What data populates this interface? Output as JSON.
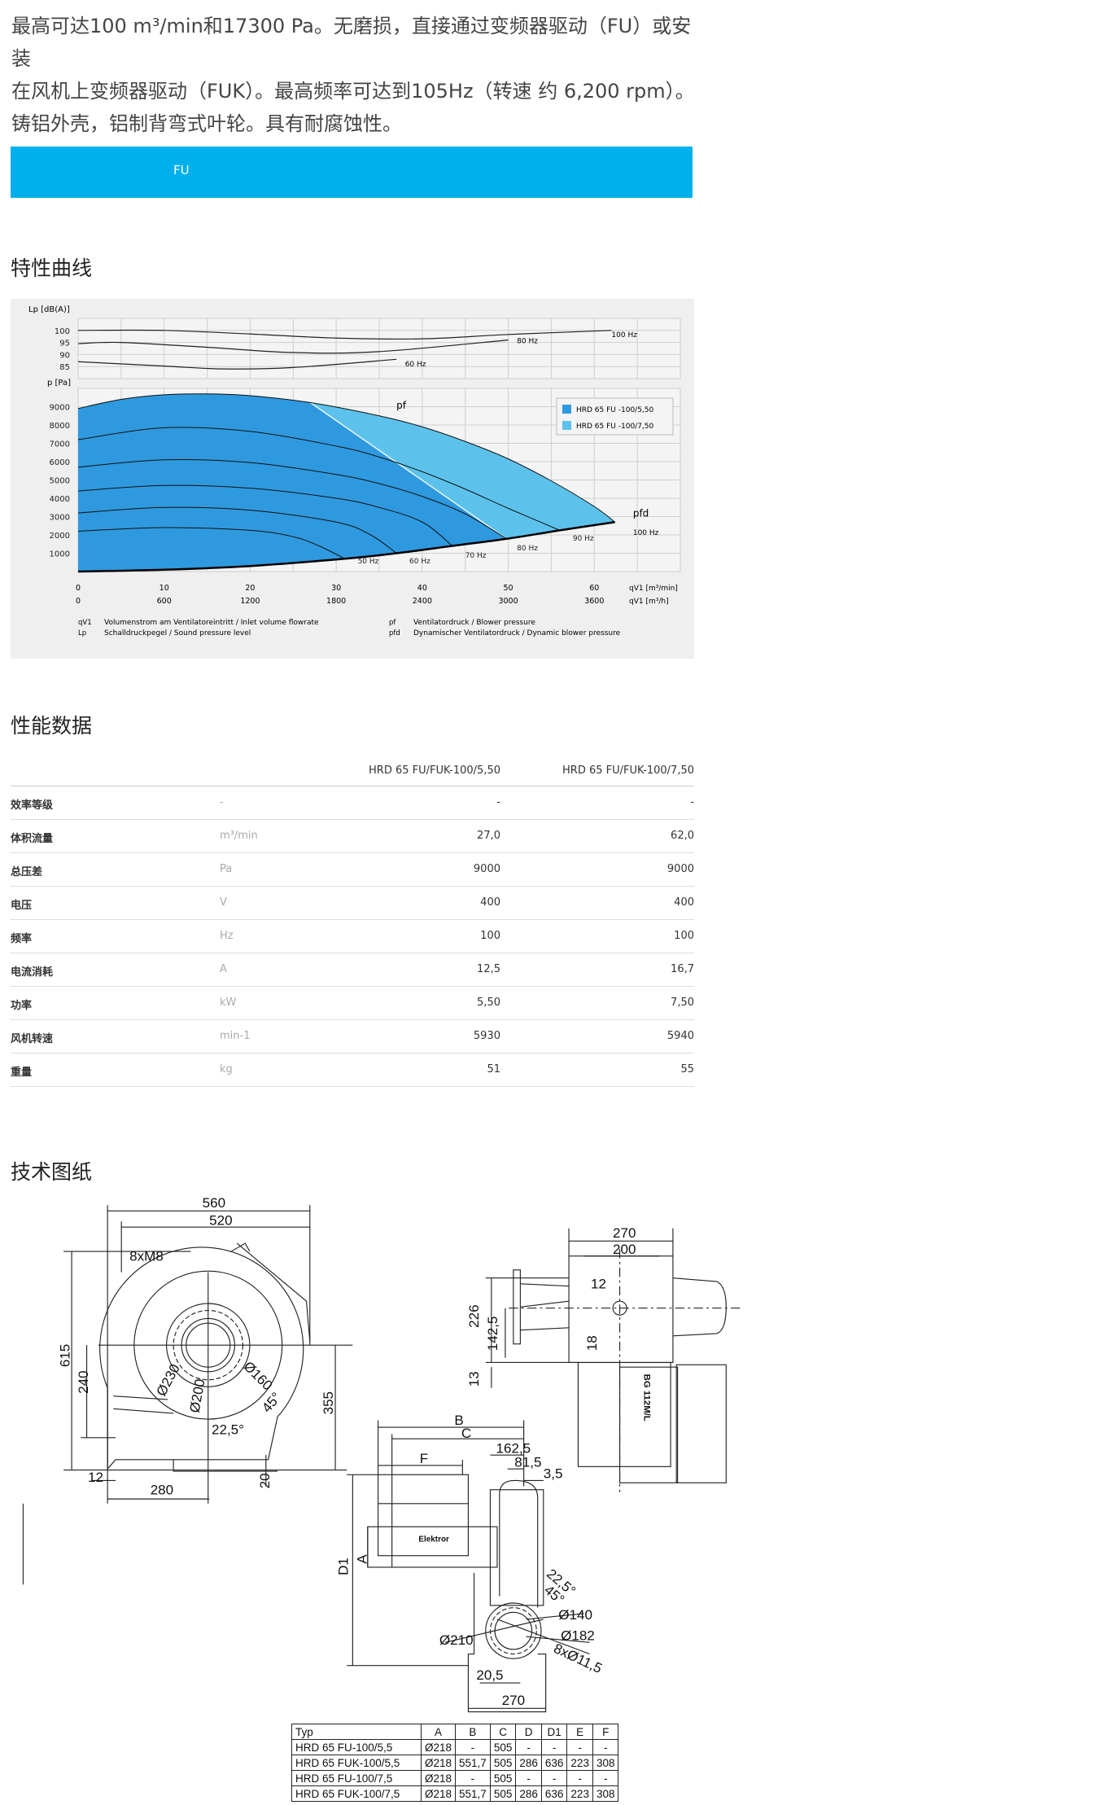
{
  "intro": {
    "line1": "最高可达100 m³/min和17300 Pa。无磨损，直接通过变频器驱动（FU）或安装",
    "line2": "在风机上变频器驱动（FUK）。最高频率可达到105Hz（转速 约 6,200 rpm）。",
    "line3": "铸铝外壳，铝制背弯式叶轮。具有耐腐蚀性。"
  },
  "tabs": [
    {
      "label": "FU",
      "active": true
    }
  ],
  "colors": {
    "accent": "#00b0ec",
    "series_dark": "#2e99df",
    "series_light": "#5cc2ec",
    "chart_bg": "#efefef"
  },
  "sections": {
    "curves": "特性曲线",
    "performance": "性能数据",
    "drawing": "技术图纸"
  },
  "chart_data": {
    "type": "area",
    "sound_panel": {
      "ylabel": "Lp [dB(A)]",
      "yticks": [
        100,
        95,
        90,
        85
      ],
      "ylim": [
        80,
        105
      ],
      "xlim": [
        0,
        70
      ],
      "series": [
        {
          "name": "100 Hz",
          "points": [
            [
              0,
              100
            ],
            [
              10,
              100
            ],
            [
              20,
              98.5
            ],
            [
              30,
              96.8
            ],
            [
              40,
              96.5
            ],
            [
              50,
              98.3
            ],
            [
              62,
              100
            ]
          ],
          "label_at": [
            62,
            98.5
          ]
        },
        {
          "name": "80 Hz",
          "points": [
            [
              0,
              94.5
            ],
            [
              5,
              95
            ],
            [
              15,
              93
            ],
            [
              25,
              90.8
            ],
            [
              35,
              91.2
            ],
            [
              50,
              96
            ]
          ],
          "label_at": [
            51,
            96
          ]
        },
        {
          "name": "60 Hz",
          "points": [
            [
              0,
              87
            ],
            [
              10,
              85.2
            ],
            [
              17,
              84
            ],
            [
              25,
              84.6
            ],
            [
              37,
              88
            ]
          ],
          "label_at": [
            38,
            86.5
          ]
        }
      ]
    },
    "pressure_panel": {
      "ylabel": "p [Pa]",
      "yticks": [
        9000,
        8000,
        7000,
        6000,
        5000,
        4000,
        3000,
        2000,
        1000
      ],
      "ylim": [
        0,
        10000
      ],
      "xlim": [
        0,
        70
      ],
      "grid": true,
      "xticks_min": [
        0,
        10,
        20,
        30,
        40,
        50,
        60
      ],
      "xticks_h": [
        0,
        600,
        1200,
        1800,
        2400,
        3000,
        3600
      ],
      "xlabel_min": "qV1 [m³/min]",
      "xlabel_h": "qV1 [m³/h]",
      "envelope_100hz": [
        [
          0,
          8900
        ],
        [
          5,
          9400
        ],
        [
          10,
          9650
        ],
        [
          15,
          9700
        ],
        [
          20,
          9600
        ],
        [
          27,
          9220
        ],
        [
          35,
          8500
        ],
        [
          40,
          7900
        ],
        [
          45,
          7100
        ],
        [
          50,
          6150
        ],
        [
          55,
          4950
        ],
        [
          60,
          3550
        ],
        [
          62.4,
          2700
        ]
      ],
      "pfd": [
        [
          0,
          0
        ],
        [
          10,
          100
        ],
        [
          20,
          300
        ],
        [
          31,
          700
        ],
        [
          37,
          1000
        ],
        [
          43.5,
          1400
        ],
        [
          50,
          1800
        ],
        [
          56,
          2250
        ],
        [
          62.4,
          2700
        ]
      ],
      "split_line": [
        [
          27,
          9220
        ],
        [
          49.7,
          1820
        ]
      ],
      "speed_curves": [
        {
          "name": "90 Hz",
          "points": [
            [
              0,
              7200
            ],
            [
              10,
              7850
            ],
            [
              20,
              7650
            ],
            [
              30,
              6850
            ],
            [
              35,
              6250
            ],
            [
              40,
              5450
            ],
            [
              45,
              4500
            ],
            [
              50,
              3450
            ],
            [
              56,
              2250
            ]
          ],
          "label_at": [
            57.5,
            1700
          ]
        },
        {
          "name": "80 Hz",
          "points": [
            [
              0,
              5700
            ],
            [
              10,
              6100
            ],
            [
              20,
              5950
            ],
            [
              30,
              5300
            ],
            [
              35,
              4800
            ],
            [
              40,
              4100
            ],
            [
              45,
              3150
            ],
            [
              49.7,
              1820
            ]
          ],
          "label_at": [
            51,
            1150
          ]
        },
        {
          "name": "70 Hz",
          "points": [
            [
              0,
              4400
            ],
            [
              10,
              4700
            ],
            [
              20,
              4550
            ],
            [
              30,
              4000
            ],
            [
              35,
              3500
            ],
            [
              40,
              2700
            ],
            [
              43.5,
              1400
            ]
          ],
          "label_at": [
            45,
            750
          ]
        },
        {
          "name": "60 Hz",
          "points": [
            [
              0,
              3200
            ],
            [
              10,
              3500
            ],
            [
              20,
              3350
            ],
            [
              30,
              2700
            ],
            [
              34,
              2000
            ],
            [
              37,
              1000
            ]
          ],
          "label_at": [
            38.5,
            450
          ]
        },
        {
          "name": "50 Hz",
          "points": [
            [
              0,
              2200
            ],
            [
              10,
              2400
            ],
            [
              20,
              2250
            ],
            [
              25,
              1900
            ],
            [
              28,
              1400
            ],
            [
              31,
              700
            ]
          ],
          "label_at": [
            32.5,
            450
          ]
        }
      ],
      "label_100hz": {
        "name": "100 Hz",
        "label_at": [
          64.5,
          2000
        ]
      },
      "label_pf": {
        "text": "pf",
        "label_at": [
          37,
          8900
        ]
      },
      "label_pfd": {
        "text": "pfd",
        "label_at": [
          64.5,
          3000
        ]
      },
      "legend": {
        "placement": "top-right",
        "entries": [
          {
            "name": "HRD 65 FU  -100/5,50",
            "color": "#2e99df"
          },
          {
            "name": "HRD 65 FU  -100/7,50",
            "color": "#5cc2ec"
          }
        ]
      }
    },
    "footnotes": [
      {
        "sym": "qV1",
        "text": "Volumenstrom am Ventilatoreintritt / Inlet volume flowrate"
      },
      {
        "sym": "Lp",
        "text": "Schalldruckpegel / Sound pressure level"
      },
      {
        "sym": "pf",
        "text": "Ventilatordruck / Blower pressure"
      },
      {
        "sym": "pfd",
        "text": "Dynamischer Ventilatordruck / Dynamic blower pressure"
      }
    ]
  },
  "performance": {
    "columns": [
      "HRD 65 FU/FUK-100/5,50",
      "HRD 65 FU/FUK-100/7,50"
    ],
    "rows": [
      {
        "label": "效率等级",
        "unit": "-",
        "v1": "-",
        "v2": "-"
      },
      {
        "label": "体积流量",
        "unit": "m³/min",
        "v1": "27,0",
        "v2": "62,0"
      },
      {
        "label": "总压差",
        "unit": "Pa",
        "v1": "9000",
        "v2": "9000"
      },
      {
        "label": "电压",
        "unit": "V",
        "v1": "400",
        "v2": "400"
      },
      {
        "label": "频率",
        "unit": "Hz",
        "v1": "100",
        "v2": "100"
      },
      {
        "label": "电流消耗",
        "unit": "A",
        "v1": "12,5",
        "v2": "16,7"
      },
      {
        "label": "功率",
        "unit": "kW",
        "v1": "5,50",
        "v2": "7,50"
      },
      {
        "label": "风机转速",
        "unit": "min-1",
        "v1": "5930",
        "v2": "5940"
      },
      {
        "label": "重量",
        "unit": "kg",
        "v1": "51",
        "v2": "55"
      }
    ]
  },
  "drawing": {
    "front": {
      "d560": "560",
      "d520": "520",
      "m8": "8xM8",
      "d615": "615",
      "d240": "240",
      "d355": "355",
      "o230": "Ø230",
      "o200": "Ø200",
      "o160": "Ø160",
      "a45": "45°",
      "a225": "22,5°",
      "d12": "12",
      "d280": "280",
      "d20": "20"
    },
    "top": {
      "d270": "270",
      "d200": "200",
      "d12": "12",
      "d226": "226",
      "d1425": "142,5",
      "d18": "18",
      "d13": "13",
      "motor": "BG 112M/L"
    },
    "side": {
      "B": "B",
      "C": "C",
      "F": "F",
      "d1625": "162,5",
      "d815": "81,5",
      "d35": "3,5",
      "A": "A",
      "D1": "D1",
      "brand": "Elektror",
      "a225": "22,5°",
      "a45": "45°",
      "o140": "Ø140",
      "o182": "Ø182",
      "o210": "Ø210",
      "holes": "8xØ11,5",
      "d205": "20,5",
      "d270": "270"
    }
  },
  "dim_table": {
    "header": [
      "Typ",
      "A",
      "B",
      "C",
      "D",
      "D1",
      "E",
      "F"
    ],
    "rows": [
      [
        "HRD 65 FU-100/5,5",
        "Ø218",
        "-",
        "505",
        "-",
        "-",
        "-",
        "-"
      ],
      [
        "HRD 65 FUK-100/5,5",
        "Ø218",
        "551,7",
        "505",
        "286",
        "636",
        "223",
        "308"
      ],
      [
        "HRD 65 FU-100/7,5",
        "Ø218",
        "-",
        "505",
        "-",
        "-",
        "-",
        "-"
      ],
      [
        "HRD 65 FUK-100/7,5",
        "Ø218",
        "551,7",
        "505",
        "286",
        "636",
        "223",
        "308"
      ]
    ]
  }
}
